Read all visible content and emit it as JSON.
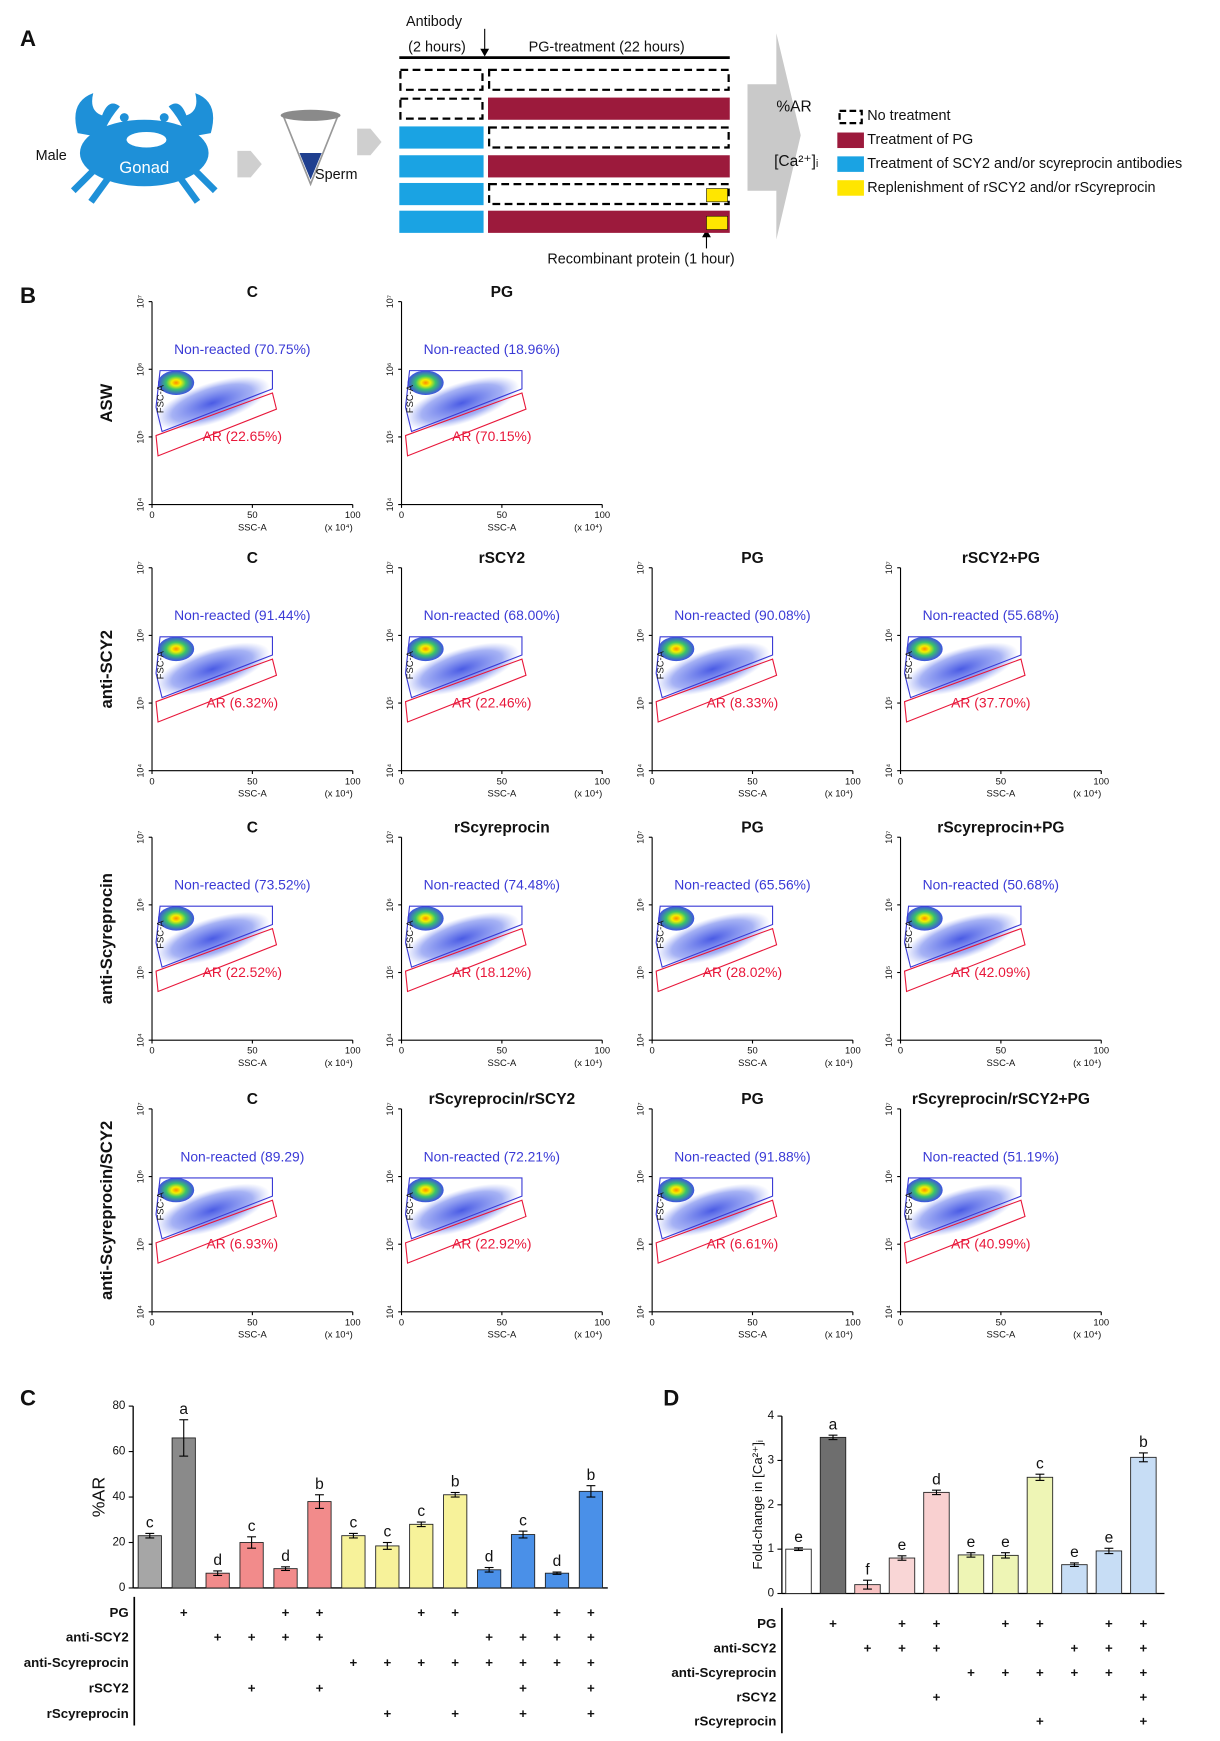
{
  "panel_labels": {
    "a": "A",
    "b": "B",
    "c": "C",
    "d": "D"
  },
  "diagram": {
    "crab_label": "Male",
    "gonad_label": "Gonad",
    "sperm_label": "Sperm",
    "antibody_label": "Antibody",
    "antibody_time": "(2 hours)",
    "pg_label": "PG-treatment (22 hours)",
    "recombinant_label": "Recombinant protein (1 hour)",
    "readouts": [
      "%AR",
      "[Ca²⁺]ᵢ"
    ],
    "legend": [
      {
        "label": "No treatment",
        "color": "#000000",
        "style": "dashed"
      },
      {
        "label": "Treatment of PG",
        "color": "#9c1a3c"
      },
      {
        "label": "Treatment of SCY2 and/or scyreprocin antibodies",
        "color": "#1aa3e3"
      },
      {
        "label": "Replenishment of rSCY2 and/or rScyreprocin",
        "color": "#ffe600"
      }
    ],
    "rows": [
      {
        "antibody": false,
        "pg": false,
        "recombinant": false
      },
      {
        "antibody": false,
        "pg": true,
        "recombinant": false
      },
      {
        "antibody": true,
        "pg": false,
        "recombinant": false
      },
      {
        "antibody": true,
        "pg": true,
        "recombinant": false
      },
      {
        "antibody": true,
        "pg": false,
        "recombinant": true
      },
      {
        "antibody": true,
        "pg": true,
        "recombinant": true
      }
    ]
  },
  "flow": {
    "x_label": "SSC-A",
    "y_label": "FSC-A",
    "x_unit": "(x 10⁴)",
    "xlim": [
      0,
      100
    ],
    "xticks": [
      0,
      50,
      100
    ],
    "ylim": [
      10000,
      10000000
    ],
    "yscale": "log",
    "yticks": [
      {
        "value": 10000,
        "label": "10⁴"
      },
      {
        "value": 100000,
        "label": "10⁵"
      },
      {
        "value": 1000000,
        "label": "10⁶"
      },
      {
        "value": 10000000,
        "label": "10⁷"
      }
    ],
    "gate_colors": {
      "non_reacted": "#3a3ad6",
      "ar": "#e8173a"
    },
    "rows": [
      {
        "label": "ASW",
        "plots": [
          {
            "title": "C",
            "non_reacted": "Non-reacted (70.75%)",
            "ar": "AR (22.65%)"
          },
          {
            "title": "PG",
            "non_reacted": "Non-reacted (18.96%)",
            "ar": "AR (70.15%)"
          }
        ]
      },
      {
        "label": "anti-SCY2",
        "plots": [
          {
            "title": "C",
            "non_reacted": "Non-reacted (91.44%)",
            "ar": "AR (6.32%)"
          },
          {
            "title": "rSCY2",
            "non_reacted": "Non-reacted (68.00%)",
            "ar": "AR (22.46%)"
          },
          {
            "title": "PG",
            "non_reacted": "Non-reacted (90.08%)",
            "ar": "AR (8.33%)"
          },
          {
            "title": "rSCY2+PG",
            "non_reacted": "Non-reacted (55.68%)",
            "ar": "AR (37.70%)"
          }
        ]
      },
      {
        "label": "anti-Scyreprocin",
        "plots": [
          {
            "title": "C",
            "non_reacted": "Non-reacted (73.52%)",
            "ar": "AR (22.52%)"
          },
          {
            "title": "rScyreprocin",
            "non_reacted": "Non-reacted (74.48%)",
            "ar": "AR (18.12%)"
          },
          {
            "title": "PG",
            "non_reacted": "Non-reacted (65.56%)",
            "ar": "AR (28.02%)"
          },
          {
            "title": "rScyreprocin+PG",
            "non_reacted": "Non-reacted (50.68%)",
            "ar": "AR (42.09%)"
          }
        ]
      },
      {
        "label": "anti-Scyreprocin/SCY2",
        "plots": [
          {
            "title": "C",
            "non_reacted": "Non-reacted (89.29)",
            "ar": "AR (6.93%)"
          },
          {
            "title": "rScyreprocin/rSCY2",
            "non_reacted": "Non-reacted (72.21%)",
            "ar": "AR (22.92%)"
          },
          {
            "title": "PG",
            "non_reacted": "Non-reacted (91.88%)",
            "ar": "AR (6.61%)"
          },
          {
            "title": "rScyreprocin/rSCY2+PG",
            "non_reacted": "Non-reacted (51.19%)",
            "ar": "AR (40.99%)"
          }
        ]
      }
    ]
  },
  "chart_data": [
    {
      "type": "bar",
      "ylabel": "%AR",
      "ylim": [
        0,
        80
      ],
      "yticks": [
        0,
        20,
        40,
        60,
        80
      ],
      "values": [
        23,
        66,
        6.5,
        20,
        8.5,
        38,
        23,
        18.5,
        28,
        41,
        8,
        23.5,
        6.5,
        42.5
      ],
      "errors": [
        1,
        8,
        1,
        2.5,
        0.8,
        3,
        1,
        1.5,
        1,
        1,
        1,
        1.5,
        0.5,
        2.5
      ],
      "letters": [
        "c",
        "a",
        "d",
        "c",
        "d",
        "b",
        "c",
        "c",
        "c",
        "b",
        "d",
        "c",
        "d",
        "b"
      ],
      "colors": [
        "#a6a6a6",
        "#8a8a8a",
        "#f28b8b",
        "#f28b8b",
        "#f28b8b",
        "#f28b8b",
        "#f7f29a",
        "#f7f29a",
        "#f7f29a",
        "#f7f29a",
        "#4a90e8",
        "#4a90e8",
        "#4a90e8",
        "#4a90e8"
      ],
      "conditions": [
        {
          "name": "PG",
          "marks": [
            null,
            "+",
            null,
            null,
            "+",
            "+",
            null,
            null,
            "+",
            "+",
            null,
            null,
            "+",
            "+"
          ]
        },
        {
          "name": "anti-SCY2",
          "marks": [
            null,
            null,
            "+",
            "+",
            "+",
            "+",
            null,
            null,
            null,
            null,
            "+",
            "+",
            "+",
            "+"
          ]
        },
        {
          "name": "anti-Scyreprocin",
          "marks": [
            null,
            null,
            null,
            null,
            null,
            null,
            "+",
            "+",
            "+",
            "+",
            "+",
            "+",
            "+",
            "+"
          ]
        },
        {
          "name": "rSCY2",
          "marks": [
            null,
            null,
            null,
            "+",
            null,
            "+",
            null,
            null,
            null,
            null,
            null,
            "+",
            null,
            "+"
          ]
        },
        {
          "name": "rScyreprocin",
          "marks": [
            null,
            null,
            null,
            null,
            null,
            null,
            null,
            "+",
            null,
            "+",
            null,
            "+",
            null,
            "+"
          ]
        }
      ]
    },
    {
      "type": "bar",
      "ylabel": "Fold-change in [Ca²⁺]ᵢ",
      "ylim": [
        0,
        4
      ],
      "yticks": [
        0,
        1,
        2,
        3,
        4
      ],
      "values": [
        1.0,
        3.52,
        0.2,
        0.8,
        2.28,
        0.87,
        0.86,
        2.62,
        0.65,
        0.96,
        3.07
      ],
      "errors": [
        0.03,
        0.05,
        0.1,
        0.05,
        0.05,
        0.05,
        0.06,
        0.07,
        0.04,
        0.06,
        0.1
      ],
      "letters": [
        "e",
        "a",
        "f",
        "e",
        "d",
        "e",
        "e",
        "c",
        "e",
        "e",
        "b"
      ],
      "colors": [
        "#ffffff",
        "#6e6e6e",
        "#f8c2c2",
        "#f9d6d6",
        "#f9d0d0",
        "#eef5b5",
        "#eef5b5",
        "#eef5b5",
        "#c7ddf5",
        "#c7ddf5",
        "#c7ddf5"
      ],
      "conditions": [
        {
          "name": "PG",
          "marks": [
            null,
            "+",
            null,
            "+",
            "+",
            null,
            "+",
            "+",
            null,
            "+",
            "+"
          ]
        },
        {
          "name": "anti-SCY2",
          "marks": [
            null,
            null,
            "+",
            "+",
            "+",
            null,
            null,
            null,
            "+",
            "+",
            "+"
          ]
        },
        {
          "name": "anti-Scyreprocin",
          "marks": [
            null,
            null,
            null,
            null,
            null,
            "+",
            "+",
            "+",
            "+",
            "+",
            "+"
          ]
        },
        {
          "name": "rSCY2",
          "marks": [
            null,
            null,
            null,
            null,
            "+",
            null,
            null,
            null,
            null,
            null,
            "+"
          ]
        },
        {
          "name": "rScyreprocin",
          "marks": [
            null,
            null,
            null,
            null,
            null,
            null,
            null,
            "+",
            null,
            null,
            "+"
          ]
        }
      ]
    }
  ]
}
